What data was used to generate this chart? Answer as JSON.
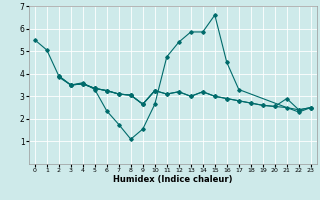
{
  "title": "",
  "xlabel": "Humidex (Indice chaleur)",
  "ylabel": "",
  "background_color": "#ceeaea",
  "grid_color": "#ffffff",
  "line_color": "#006b6b",
  "xlim": [
    -0.5,
    23.5
  ],
  "ylim": [
    0,
    7
  ],
  "x_ticks": [
    0,
    1,
    2,
    3,
    4,
    5,
    6,
    7,
    8,
    9,
    10,
    11,
    12,
    13,
    14,
    15,
    16,
    17,
    18,
    19,
    20,
    21,
    22,
    23
  ],
  "y_ticks": [
    1,
    2,
    3,
    4,
    5,
    6,
    7
  ],
  "series": [
    {
      "x": [
        0,
        1,
        2,
        3,
        4,
        5,
        6,
        7,
        8,
        9,
        10,
        11,
        12,
        13,
        14,
        15,
        16,
        17,
        18,
        19,
        20,
        21,
        22,
        23
      ],
      "y": [
        5.5,
        5.05,
        3.9,
        3.5,
        3.55,
        3.35,
        3.25,
        3.1,
        3.05,
        2.65,
        3.25,
        3.1,
        3.2,
        3.0,
        3.2,
        3.0,
        2.9,
        2.8,
        2.7,
        2.6,
        2.55,
        2.5,
        2.4,
        2.5
      ]
    },
    {
      "x": [
        2,
        3,
        4,
        5,
        6,
        7,
        8,
        9,
        10,
        11,
        12,
        13,
        14,
        15,
        16,
        17,
        22,
        23
      ],
      "y": [
        3.9,
        3.5,
        3.6,
        3.3,
        2.35,
        1.75,
        1.1,
        1.55,
        2.65,
        4.75,
        5.4,
        5.85,
        5.85,
        6.6,
        4.5,
        3.3,
        2.3,
        2.5
      ]
    },
    {
      "x": [
        2,
        3,
        4,
        5,
        6,
        7,
        8,
        9,
        10
      ],
      "y": [
        3.85,
        3.5,
        3.55,
        3.35,
        3.25,
        3.1,
        3.05,
        2.65,
        3.25
      ]
    },
    {
      "x": [
        3,
        4,
        5,
        6,
        7,
        8,
        9,
        10,
        11,
        12,
        13,
        14,
        15,
        16,
        17,
        18,
        19,
        20,
        21,
        22,
        23
      ],
      "y": [
        3.5,
        3.55,
        3.35,
        3.25,
        3.1,
        3.05,
        2.65,
        3.25,
        3.1,
        3.2,
        3.0,
        3.2,
        3.0,
        2.9,
        2.8,
        2.7,
        2.6,
        2.55,
        2.9,
        2.4,
        2.5
      ]
    }
  ]
}
